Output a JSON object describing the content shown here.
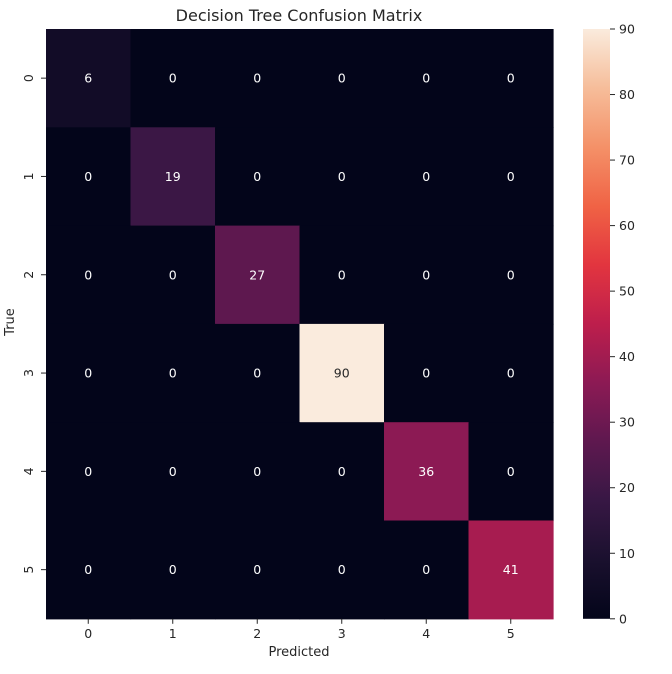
{
  "chart_data": {
    "type": "heatmap",
    "title": "Decision Tree Confusion Matrix",
    "xlabel": "Predicted",
    "ylabel": "True",
    "x_categories": [
      "0",
      "1",
      "2",
      "3",
      "4",
      "5"
    ],
    "y_categories": [
      "0",
      "1",
      "2",
      "3",
      "4",
      "5"
    ],
    "values": [
      [
        6,
        0,
        0,
        0,
        0,
        0
      ],
      [
        0,
        19,
        0,
        0,
        0,
        0
      ],
      [
        0,
        0,
        27,
        0,
        0,
        0
      ],
      [
        0,
        0,
        0,
        90,
        0,
        0
      ],
      [
        0,
        0,
        0,
        0,
        36,
        0
      ],
      [
        0,
        0,
        0,
        0,
        0,
        41
      ]
    ],
    "colorbar": {
      "range": [
        0,
        90
      ],
      "ticks": [
        0,
        10,
        20,
        30,
        40,
        50,
        60,
        70,
        80,
        90
      ],
      "colormap": "rocket"
    },
    "grid": false,
    "legend": "colorbar-right"
  }
}
